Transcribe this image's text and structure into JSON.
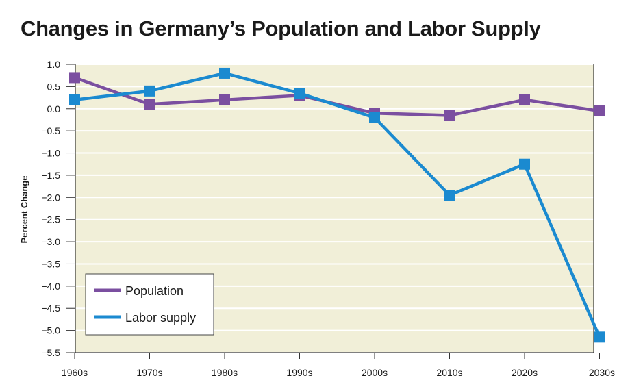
{
  "chart_data": {
    "type": "line",
    "title": "Changes in Germany’s Population and Labor Supply",
    "xlabel": "",
    "ylabel": "Percent Change",
    "categories": [
      "1960s",
      "1970s",
      "1980s",
      "1990s",
      "2000s",
      "2010s",
      "2020s",
      "2030s"
    ],
    "ylim": [
      -5.5,
      1.0
    ],
    "yticks": [
      1.0,
      0.5,
      0.0,
      -0.5,
      -1.0,
      -1.5,
      -2.0,
      -2.5,
      -3.0,
      -3.5,
      -4.0,
      -4.5,
      -5.0,
      -5.5
    ],
    "ytick_labels": [
      "1.0",
      "0.5",
      "0.0",
      "−0.5",
      "−1.0",
      "−1.5",
      "−2.0",
      "−2.5",
      "−3.0",
      "−3.5",
      "−4.0",
      "−4.5",
      "−5.0",
      "−5.5"
    ],
    "grid": true,
    "legend_position": "bottom-left",
    "background_color": "#f1efd8",
    "series": [
      {
        "name": "Population",
        "color": "#7b4fa0",
        "values": [
          0.7,
          0.1,
          0.2,
          0.3,
          -0.1,
          -0.15,
          0.2,
          -0.05
        ]
      },
      {
        "name": "Labor supply",
        "color": "#1b8ad0",
        "values": [
          0.2,
          0.4,
          0.8,
          0.35,
          -0.2,
          -1.95,
          -1.25,
          -5.15
        ]
      }
    ]
  }
}
